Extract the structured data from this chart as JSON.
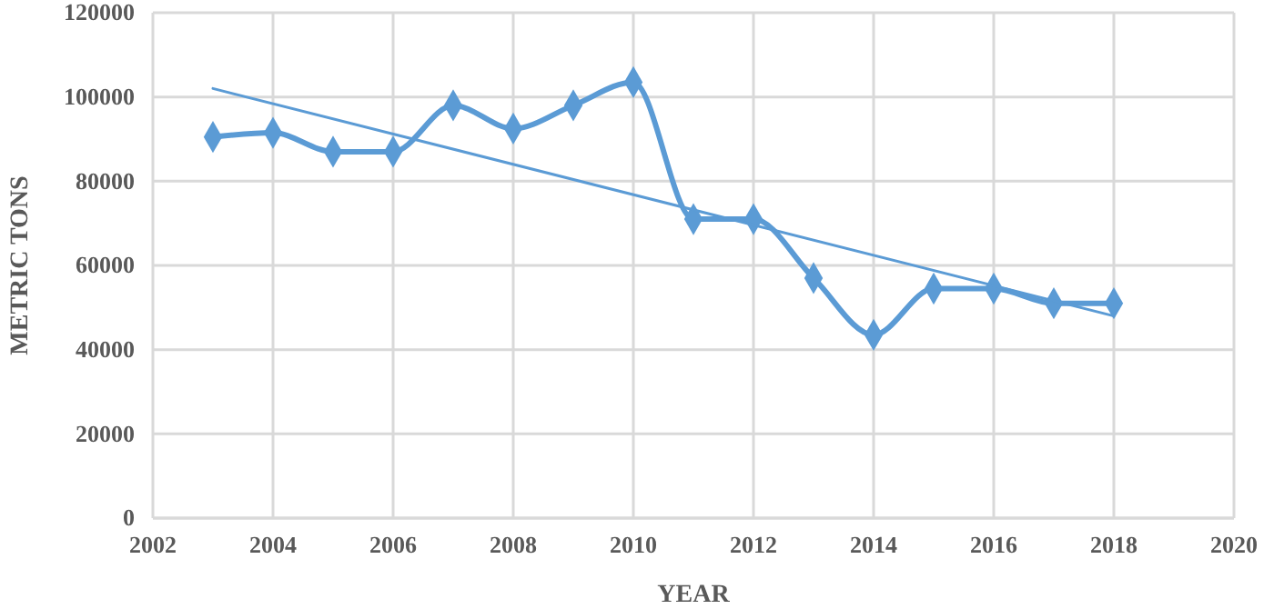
{
  "chart_data": {
    "type": "line",
    "xlabel": "YEAR",
    "ylabel": "METRIC TONS",
    "x": [
      2003,
      2004,
      2005,
      2006,
      2007,
      2008,
      2009,
      2010,
      2011,
      2012,
      2013,
      2014,
      2015,
      2016,
      2017,
      2018
    ],
    "series": [
      {
        "color": "#5b9bd5",
        "values": [
          90500,
          91500,
          87000,
          87000,
          98000,
          92500,
          98000,
          103500,
          71000,
          71000,
          57000,
          43500,
          54500,
          54500,
          51000,
          51000
        ],
        "marker": "diamond",
        "line_style": "solid"
      },
      {
        "type": "line",
        "color": "#5b9bd5",
        "x": [
          2003,
          2018
        ],
        "values": [
          102000,
          48000
        ],
        "marker": "none",
        "line_style": "solid"
      }
    ],
    "xlim": [
      2002,
      2020
    ],
    "xticks": [
      2002,
      2004,
      2006,
      2008,
      2010,
      2012,
      2014,
      2016,
      2018,
      2020
    ],
    "ylim": [
      0,
      120000
    ],
    "yticks": [
      0,
      20000,
      40000,
      60000,
      80000,
      100000,
      120000
    ],
    "grid": true
  }
}
